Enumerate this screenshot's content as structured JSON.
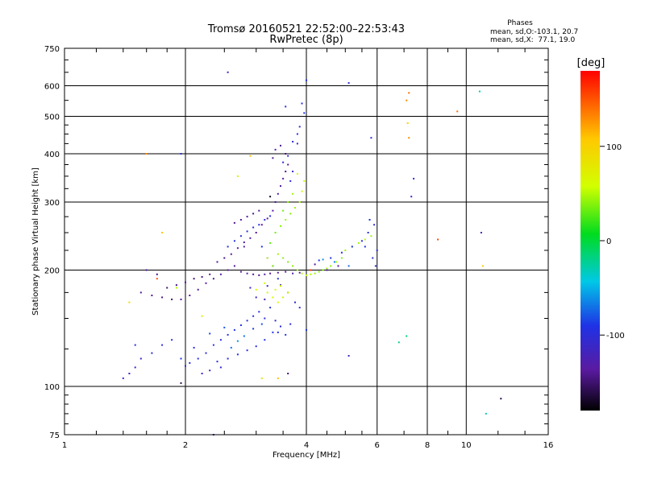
{
  "title": "Tromsø 20160521 22:52:00–22:53:43",
  "subtitle": "RwPretec (8p)",
  "phases_box": {
    "title": "Phases",
    "line1": "mean, sd,O:-103.1, 20.7",
    "line2": "mean, sd,X:  77.1, 19.0"
  },
  "colorbar": {
    "label": "[deg]",
    "min": -180,
    "max": 180,
    "tick_values": [
      100,
      0,
      -100
    ],
    "tick_labels": [
      "100",
      "0",
      "-100"
    ]
  },
  "chart_data": {
    "type": "scatter",
    "title": "Tromsø 20160521 22:52:00–22:53:43",
    "subtitle": "RwPretec (8p)",
    "xlabel": "Frequency [MHz]",
    "ylabel": "Stationary phase Virtual Height [km]",
    "xscale": "log",
    "yscale": "log",
    "xlim": [
      1,
      16
    ],
    "ylim": [
      75,
      750
    ],
    "xticks": [
      1,
      2,
      4,
      6,
      8,
      10,
      16
    ],
    "xtick_labels": [
      "1",
      "2",
      "4",
      "6",
      "8",
      "10",
      "16"
    ],
    "yticks": [
      75,
      100,
      200,
      300,
      400,
      500,
      600,
      750
    ],
    "ytick_labels": [
      "75",
      "100",
      "200",
      "300",
      "400",
      "500",
      "600",
      "750"
    ],
    "grid": true,
    "color_scale": "phase, -180 to 180 deg (black-purple-blue-cyan-green-yellow-orange-red)",
    "point_columns": [
      "freq_mhz",
      "height_km",
      "phase_deg"
    ],
    "points": [
      [
        1.4,
        105,
        -110
      ],
      [
        1.45,
        108,
        -120
      ],
      [
        1.5,
        112,
        -115
      ],
      [
        1.55,
        118,
        -110
      ],
      [
        1.65,
        122,
        -105
      ],
      [
        1.75,
        128,
        -100
      ],
      [
        1.85,
        132,
        -95
      ],
      [
        1.95,
        118,
        -90
      ],
      [
        2.05,
        115,
        -95
      ],
      [
        2.15,
        118,
        -100
      ],
      [
        2.25,
        122,
        -105
      ],
      [
        2.1,
        126,
        -100
      ],
      [
        2.0,
        113,
        -110
      ],
      [
        2.35,
        128,
        -98
      ],
      [
        2.45,
        132,
        -95
      ],
      [
        2.55,
        136,
        -100
      ],
      [
        2.65,
        140,
        -92
      ],
      [
        2.75,
        144,
        -95
      ],
      [
        2.85,
        148,
        -100
      ],
      [
        2.95,
        152,
        -93
      ],
      [
        3.05,
        156,
        -95
      ],
      [
        3.15,
        150,
        -100
      ],
      [
        3.25,
        160,
        -96
      ],
      [
        3.35,
        148,
        -102
      ],
      [
        2.4,
        116,
        -100
      ],
      [
        2.55,
        118,
        -98
      ],
      [
        2.7,
        121,
        -95
      ],
      [
        2.85,
        124,
        -100
      ],
      [
        3.0,
        127,
        -97
      ],
      [
        3.15,
        132,
        -95
      ],
      [
        3.3,
        138,
        -95
      ],
      [
        3.45,
        143,
        -98
      ],
      [
        2.6,
        126,
        -70
      ],
      [
        2.7,
        131,
        -60
      ],
      [
        2.8,
        135,
        -72
      ],
      [
        2.5,
        142,
        -80
      ],
      [
        2.3,
        137,
        -85
      ],
      [
        2.95,
        141,
        -88
      ],
      [
        3.1,
        145,
        -82
      ],
      [
        3.4,
        138,
        -90
      ],
      [
        2.2,
        108,
        -108
      ],
      [
        2.3,
        110,
        -112
      ],
      [
        2.45,
        112,
        -108
      ],
      [
        3.55,
        136,
        -95
      ],
      [
        3.65,
        145,
        -100
      ],
      [
        1.55,
        175,
        -140
      ],
      [
        1.65,
        172,
        -140
      ],
      [
        1.75,
        170,
        -145
      ],
      [
        1.85,
        168,
        -150
      ],
      [
        1.95,
        168,
        -140
      ],
      [
        2.05,
        172,
        -135
      ],
      [
        2.15,
        178,
        -140
      ],
      [
        2.25,
        185,
        -135
      ],
      [
        2.35,
        190,
        -140
      ],
      [
        2.45,
        195,
        -135
      ],
      [
        2.55,
        200,
        -138
      ],
      [
        2.65,
        205,
        -140
      ],
      [
        2.75,
        198,
        -140
      ],
      [
        2.85,
        196,
        -135
      ],
      [
        2.95,
        195,
        -140
      ],
      [
        3.05,
        194,
        -145
      ],
      [
        3.15,
        195,
        -138
      ],
      [
        3.25,
        196,
        -140
      ],
      [
        3.4,
        197,
        -135
      ],
      [
        3.55,
        198,
        -140
      ],
      [
        3.7,
        196,
        -130
      ],
      [
        3.85,
        197,
        -140
      ],
      [
        1.8,
        180,
        -150
      ],
      [
        1.9,
        183,
        -145
      ],
      [
        2.0,
        186,
        -140
      ],
      [
        2.1,
        190,
        -150
      ],
      [
        2.2,
        192,
        -145
      ],
      [
        2.3,
        195,
        -140
      ],
      [
        2.4,
        210,
        -140
      ],
      [
        2.5,
        215,
        -145
      ],
      [
        2.6,
        220,
        -140
      ],
      [
        2.7,
        228,
        -135
      ],
      [
        2.8,
        236,
        -140
      ],
      [
        2.9,
        242,
        -135
      ],
      [
        3.0,
        250,
        -140
      ],
      [
        3.1,
        262,
        -138
      ],
      [
        3.2,
        272,
        -140
      ],
      [
        3.3,
        285,
        -135
      ],
      [
        3.35,
        300,
        -140
      ],
      [
        3.4,
        315,
        -138
      ],
      [
        3.45,
        330,
        -140
      ],
      [
        3.5,
        345,
        -135
      ],
      [
        3.55,
        360,
        -140
      ],
      [
        3.6,
        375,
        -138
      ],
      [
        3.3,
        390,
        -140
      ],
      [
        3.35,
        410,
        -135
      ],
      [
        3.45,
        420,
        -140
      ],
      [
        3.55,
        400,
        -145
      ],
      [
        2.65,
        265,
        -140
      ],
      [
        2.75,
        270,
        -135
      ],
      [
        2.85,
        275,
        -140
      ],
      [
        2.95,
        280,
        -145
      ],
      [
        3.05,
        285,
        -140
      ],
      [
        1.6,
        200,
        -140
      ],
      [
        1.7,
        195,
        -150
      ],
      [
        2.55,
        230,
        -100
      ],
      [
        2.65,
        238,
        -95
      ],
      [
        2.75,
        245,
        -100
      ],
      [
        2.85,
        252,
        -98
      ],
      [
        2.95,
        258,
        -100
      ],
      [
        3.05,
        262,
        -95
      ],
      [
        3.15,
        270,
        -100
      ],
      [
        3.25,
        276,
        -98
      ],
      [
        3.5,
        380,
        -100
      ],
      [
        3.6,
        395,
        -102
      ],
      [
        3.7,
        430,
        -100
      ],
      [
        3.8,
        450,
        -98
      ],
      [
        3.85,
        470,
        -100
      ],
      [
        3.7,
        360,
        -105
      ],
      [
        3.65,
        340,
        -100
      ],
      [
        3.55,
        530,
        -100
      ],
      [
        3.95,
        510,
        -90
      ],
      [
        3.9,
        540,
        -95
      ],
      [
        4.0,
        620,
        -90
      ],
      [
        5.1,
        610,
        -100
      ],
      [
        2.55,
        650,
        -110
      ],
      [
        1.95,
        400,
        -100
      ],
      [
        2.8,
        230,
        -130
      ],
      [
        3.1,
        230,
        -90
      ],
      [
        3.2,
        215,
        -100
      ],
      [
        3.3,
        205,
        -95
      ],
      [
        3.4,
        190,
        -100
      ],
      [
        3.6,
        175,
        -98
      ],
      [
        3.75,
        165,
        -100
      ],
      [
        3.85,
        160,
        -105
      ],
      [
        3.0,
        170,
        -120
      ],
      [
        3.15,
        168,
        -125
      ],
      [
        2.9,
        180,
        -115
      ],
      [
        3.2,
        182,
        -110
      ],
      [
        3.45,
        183,
        -112
      ],
      [
        3.25,
        235,
        30
      ],
      [
        3.35,
        250,
        35
      ],
      [
        3.45,
        260,
        40
      ],
      [
        3.55,
        270,
        45
      ],
      [
        3.65,
        280,
        40
      ],
      [
        3.75,
        290,
        45
      ],
      [
        3.85,
        300,
        50
      ],
      [
        3.9,
        320,
        55
      ],
      [
        3.95,
        340,
        55
      ],
      [
        3.8,
        355,
        60
      ],
      [
        3.5,
        285,
        35
      ],
      [
        3.6,
        300,
        40
      ],
      [
        3.7,
        315,
        45
      ],
      [
        3.4,
        220,
        45
      ],
      [
        3.3,
        205,
        40
      ],
      [
        3.2,
        215,
        50
      ],
      [
        3.5,
        215,
        40
      ],
      [
        3.6,
        210,
        35
      ],
      [
        3.7,
        205,
        40
      ],
      [
        3.8,
        200,
        45
      ],
      [
        3.9,
        196,
        50
      ],
      [
        4.0,
        194,
        55
      ],
      [
        4.1,
        195,
        50
      ],
      [
        4.2,
        196,
        45
      ],
      [
        4.3,
        198,
        40
      ],
      [
        4.4,
        200,
        40
      ],
      [
        4.5,
        202,
        45
      ],
      [
        4.6,
        205,
        40
      ],
      [
        4.75,
        210,
        45
      ],
      [
        4.9,
        215,
        40
      ],
      [
        5.0,
        225,
        45
      ],
      [
        5.2,
        230,
        50
      ],
      [
        5.4,
        235,
        45
      ],
      [
        5.6,
        240,
        50
      ],
      [
        5.8,
        245,
        45
      ],
      [
        3.2,
        175,
        55
      ],
      [
        3.3,
        170,
        60
      ],
      [
        3.4,
        165,
        58
      ],
      [
        3.5,
        170,
        55
      ],
      [
        3.6,
        175,
        60
      ],
      [
        3.35,
        178,
        62
      ],
      [
        3.45,
        182,
        58
      ],
      [
        3.15,
        185,
        55
      ],
      [
        3.0,
        178,
        60
      ],
      [
        4.3,
        212,
        -90
      ],
      [
        4.6,
        215,
        -95
      ],
      [
        4.9,
        222,
        -100
      ],
      [
        5.2,
        230,
        -92
      ],
      [
        5.5,
        238,
        -100
      ],
      [
        5.7,
        250,
        -95
      ],
      [
        5.9,
        262,
        -100
      ],
      [
        5.75,
        270,
        -90
      ],
      [
        5.6,
        230,
        -95
      ],
      [
        5.85,
        215,
        -100
      ],
      [
        6.0,
        225,
        -98
      ],
      [
        5.95,
        205,
        -95
      ],
      [
        4.8,
        205,
        -140
      ],
      [
        4.5,
        200,
        -135
      ],
      [
        4.2,
        207,
        -140
      ],
      [
        5.1,
        205,
        -70
      ],
      [
        4.7,
        210,
        -65
      ],
      [
        5.8,
        440,
        -100
      ],
      [
        5.1,
        120,
        -110
      ],
      [
        6.8,
        130,
        -20
      ],
      [
        7.1,
        135,
        -15
      ],
      [
        7.3,
        310,
        -110
      ],
      [
        7.4,
        345,
        -105
      ],
      [
        7.2,
        440,
        130
      ],
      [
        7.1,
        550,
        130
      ],
      [
        7.2,
        575,
        140
      ],
      [
        7.15,
        480,
        100
      ],
      [
        8.5,
        240,
        155
      ],
      [
        9.5,
        515,
        140
      ],
      [
        10.8,
        580,
        -30
      ],
      [
        10.9,
        250,
        -120
      ],
      [
        11.0,
        205,
        100
      ],
      [
        11.2,
        85,
        -30
      ],
      [
        12.2,
        93,
        -160
      ],
      [
        1.6,
        400,
        130
      ],
      [
        1.75,
        250,
        110
      ],
      [
        1.45,
        165,
        90
      ],
      [
        1.95,
        102,
        -160
      ],
      [
        2.35,
        75,
        -120
      ],
      [
        3.1,
        105,
        80
      ],
      [
        3.6,
        108,
        -150
      ],
      [
        4.0,
        140,
        -90
      ],
      [
        1.9,
        180,
        50
      ],
      [
        2.2,
        152,
        70
      ],
      [
        2.7,
        350,
        70
      ],
      [
        2.9,
        395,
        110
      ],
      [
        3.25,
        310,
        -170
      ],
      [
        3.8,
        425,
        -115
      ],
      [
        4.1,
        200,
        160
      ],
      [
        1.5,
        128,
        -100
      ],
      [
        1.7,
        190,
        150
      ],
      [
        4.4,
        213,
        -60
      ],
      [
        3.4,
        105,
        110
      ]
    ]
  }
}
